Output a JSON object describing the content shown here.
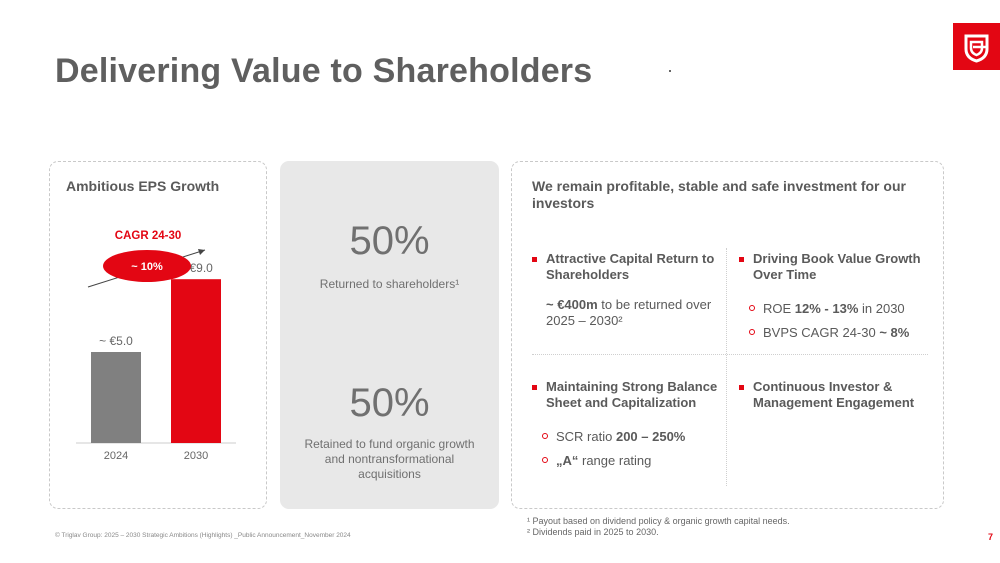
{
  "header": {
    "title": "Delivering Value to Shareholders"
  },
  "brand": {
    "accent": "#e30613",
    "logo_icon": "triglav-shield-logo"
  },
  "eps_card": {
    "title": "Ambitious EPS Growth",
    "cagr_label": "CAGR 24-30",
    "cagr_value": "~ 10%"
  },
  "chart_data": {
    "type": "bar",
    "title": "Ambitious EPS Growth",
    "categories": [
      "2024",
      "2030"
    ],
    "values": [
      5.0,
      9.0
    ],
    "data_labels": [
      "~ €5.0",
      "~ €9.0"
    ],
    "colors": [
      "#808080",
      "#e30613"
    ],
    "annotation": {
      "label": "CAGR 24-30",
      "value": "~ 10%"
    },
    "grid": false
  },
  "payout_card": {
    "top_pct": "50%",
    "top_label": "Returned to shareholders¹",
    "bottom_pct": "50%",
    "bottom_label": "Retained to fund organic growth and nontransformational acquisitions"
  },
  "invest_card": {
    "title": "We remain profitable, stable and safe investment for our investors",
    "q1": {
      "head": "Attractive Capital Return to Shareholders",
      "body_bold": "~ €400m",
      "body_rest": " to be returned over 2025 – 2030²"
    },
    "q2": {
      "head": "Driving Book Value Growth Over Time",
      "b1_pre": "ROE ",
      "b1_bold": "12% - 13%",
      "b1_post": " in 2030",
      "b2_pre": "BVPS CAGR 24-30 ",
      "b2_bold": "~ 8%"
    },
    "q3": {
      "head": "Maintaining Strong Balance Sheet and Capitalization",
      "b1_pre": "SCR ratio ",
      "b1_bold": "200 – 250%",
      "b2_bold": "„A“",
      "b2_post": " range rating"
    },
    "q4": {
      "head": "Continuous Investor & Management Engagement"
    }
  },
  "footer": {
    "footnote1": "¹ Payout based on dividend policy & organic growth capital needs.",
    "footnote2": "² Dividends paid in 2025 to 2030.",
    "copyright": "© Triglav Group: 2025 – 2030 Strategic Ambitions (Highlights) _Public Announcement_November 2024",
    "page_number": "7"
  }
}
